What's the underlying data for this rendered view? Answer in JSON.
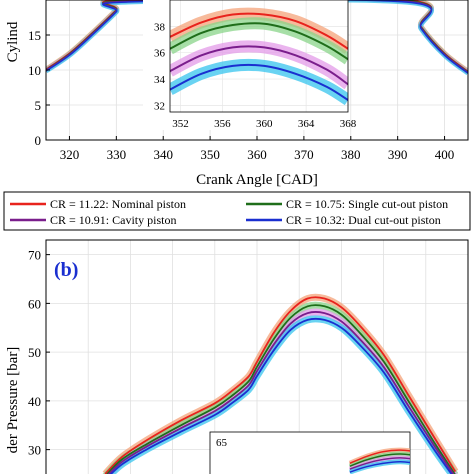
{
  "colors": {
    "nominal": "#e8231d",
    "single_cut_out": "#1f6e1a",
    "cavity": "#7a1e8c",
    "dual_cut_out": "#1a2fd0",
    "band_nominal": "#f4a37a",
    "band_single": "#8ad48a",
    "band_cavity": "#e39be8",
    "band_dual": "#37c4ee"
  },
  "chart_data": [
    {
      "type": "line",
      "panel": "a",
      "xlabel": "Crank Angle [CAD]",
      "ylabel": "Cylind",
      "xlim": [
        315,
        405
      ],
      "ylim": [
        0,
        20
      ],
      "x_ticks": [
        320,
        330,
        340,
        350,
        360,
        370,
        380,
        390,
        400
      ],
      "y_ticks": [
        0,
        5,
        10,
        15
      ],
      "grid": true,
      "series": [
        {
          "name": "CR = 11.22: Nominal piston",
          "x": [
            315,
            320,
            325,
            330,
            332,
            392,
            395,
            400,
            405
          ],
          "y": [
            10.1,
            12.4,
            15.4,
            18.6,
            20,
            20,
            16.2,
            12.4,
            9.8
          ]
        },
        {
          "name": "CR = 10.75: Single cut-out piston",
          "x": [
            315,
            320,
            325,
            330,
            332,
            392,
            395,
            400,
            405
          ],
          "y": [
            10.0,
            12.3,
            15.3,
            18.5,
            19.9,
            19.9,
            16.1,
            12.3,
            9.7
          ]
        },
        {
          "name": "CR = 10.91: Cavity piston",
          "x": [
            315,
            320,
            325,
            330,
            332,
            392,
            395,
            400,
            405
          ],
          "y": [
            9.95,
            12.2,
            15.2,
            18.4,
            19.8,
            19.8,
            16.0,
            12.2,
            9.65
          ]
        },
        {
          "name": "CR = 10.32: Dual cut-out piston",
          "x": [
            315,
            320,
            325,
            330,
            332,
            392,
            395,
            400,
            405
          ],
          "y": [
            9.85,
            12.1,
            15.1,
            18.3,
            19.7,
            19.7,
            15.9,
            12.1,
            9.55
          ]
        }
      ],
      "inset": {
        "xlim": [
          351,
          368
        ],
        "ylim": [
          31.5,
          40
        ],
        "x_ticks": [
          352,
          356,
          360,
          364,
          368
        ],
        "y_ticks": [
          32,
          34,
          36,
          38
        ],
        "series": [
          {
            "name": "CR = 11.22: Nominal piston",
            "x": [
              351,
              354,
              357,
              360,
              363,
              366,
              368
            ],
            "y": [
              37.2,
              38.3,
              38.9,
              38.9,
              38.4,
              37.3,
              36.3
            ]
          },
          {
            "name": "CR = 10.75: Single cut-out piston",
            "x": [
              351,
              354,
              357,
              360,
              363,
              366,
              368
            ],
            "y": [
              36.3,
              37.5,
              38.1,
              38.2,
              37.6,
              36.5,
              35.5
            ]
          },
          {
            "name": "CR = 10.91: Cavity piston",
            "x": [
              351,
              354,
              357,
              360,
              363,
              366,
              368
            ],
            "y": [
              34.6,
              35.8,
              36.4,
              36.4,
              35.8,
              34.7,
              33.6
            ]
          },
          {
            "name": "CR = 10.32: Dual cut-out piston",
            "x": [
              351,
              354,
              357,
              360,
              363,
              366,
              368
            ],
            "y": [
              33.2,
              34.4,
              35.0,
              35.0,
              34.4,
              33.4,
              32.4
            ]
          }
        ]
      }
    },
    {
      "type": "line",
      "panel": "b",
      "panel_label": "(b)",
      "ylabel": "der Pressure [bar]",
      "y_ticks": [
        30,
        40,
        50,
        60,
        70
      ],
      "ylim": [
        25,
        73
      ],
      "x_domain": [
        0,
        100
      ],
      "grid": true,
      "inset_tick_label": "65",
      "series": [
        {
          "name": "CR = 11.22: Nominal piston",
          "x": [
            14,
            18,
            24,
            32,
            40,
            44,
            48,
            50,
            54,
            58,
            62,
            66,
            70,
            74,
            80,
            86,
            92,
            97
          ],
          "y": [
            25,
            28.5,
            32,
            36,
            39.5,
            42,
            45,
            48,
            54,
            58.5,
            61,
            61,
            59.2,
            55.8,
            49.5,
            41,
            32.5,
            25.5
          ]
        },
        {
          "name": "CR = 10.75: Single cut-out piston",
          "x": [
            14,
            18,
            24,
            32,
            40,
            44,
            48,
            50,
            54,
            58,
            62,
            66,
            70,
            74,
            80,
            86,
            92,
            97
          ],
          "y": [
            24.5,
            28,
            31.2,
            35,
            38.6,
            41,
            44,
            47,
            52.7,
            57.1,
            59.4,
            59.4,
            57.7,
            54.3,
            48.1,
            39.8,
            31.5,
            24.8
          ]
        },
        {
          "name": "CR = 10.91: Cavity piston",
          "x": [
            14,
            18,
            24,
            32,
            40,
            44,
            48,
            50,
            54,
            58,
            62,
            66,
            70,
            74,
            80,
            86,
            92,
            97
          ],
          "y": [
            24.2,
            27.5,
            30.7,
            34.4,
            37.9,
            40.3,
            43.2,
            46.1,
            51.6,
            55.9,
            58.0,
            58.0,
            56.3,
            53.0,
            47.0,
            38.8,
            30.8,
            24.4
          ]
        },
        {
          "name": "CR = 10.32: Dual cut-out piston",
          "x": [
            14,
            18,
            24,
            32,
            40,
            44,
            48,
            50,
            54,
            58,
            62,
            66,
            70,
            74,
            80,
            86,
            92,
            97
          ],
          "y": [
            23.8,
            27,
            30.1,
            33.7,
            37.1,
            39.5,
            42.3,
            45.1,
            50.4,
            54.6,
            56.6,
            56.6,
            55.0,
            51.8,
            45.9,
            37.8,
            30.0,
            23.9
          ]
        }
      ],
      "inset": {
        "series": [
          {
            "name": "CR = 11.22: Nominal piston",
            "x": [
              72,
              76,
              80,
              84,
              88,
              92
            ],
            "y": [
              27.2,
              28.6,
              29.6,
              29.9,
              29.5,
              28.5
            ]
          },
          {
            "name": "CR = 10.75: Single cut-out piston",
            "x": [
              72,
              76,
              80,
              84,
              88,
              92
            ],
            "y": [
              26.6,
              27.9,
              28.8,
              29.1,
              28.7,
              27.7
            ]
          },
          {
            "name": "CR = 10.91: Cavity piston",
            "x": [
              72,
              76,
              80,
              84,
              88,
              92
            ],
            "y": [
              26.0,
              27.2,
              28.0,
              28.3,
              27.9,
              26.9
            ]
          },
          {
            "name": "CR = 10.32: Dual cut-out piston",
            "x": [
              72,
              76,
              80,
              84,
              88,
              92
            ],
            "y": [
              25.4,
              26.5,
              27.2,
              27.5,
              27.1,
              26.1
            ]
          }
        ]
      }
    }
  ],
  "legend": {
    "entries": [
      {
        "label": "CR = 11.22: Nominal piston",
        "color_key": "nominal"
      },
      {
        "label": "CR = 10.75: Single cut-out piston",
        "color_key": "single_cut_out"
      },
      {
        "label": "CR = 10.91: Cavity piston",
        "color_key": "cavity"
      },
      {
        "label": "CR = 10.32: Dual cut-out piston",
        "color_key": "dual_cut_out"
      }
    ]
  }
}
